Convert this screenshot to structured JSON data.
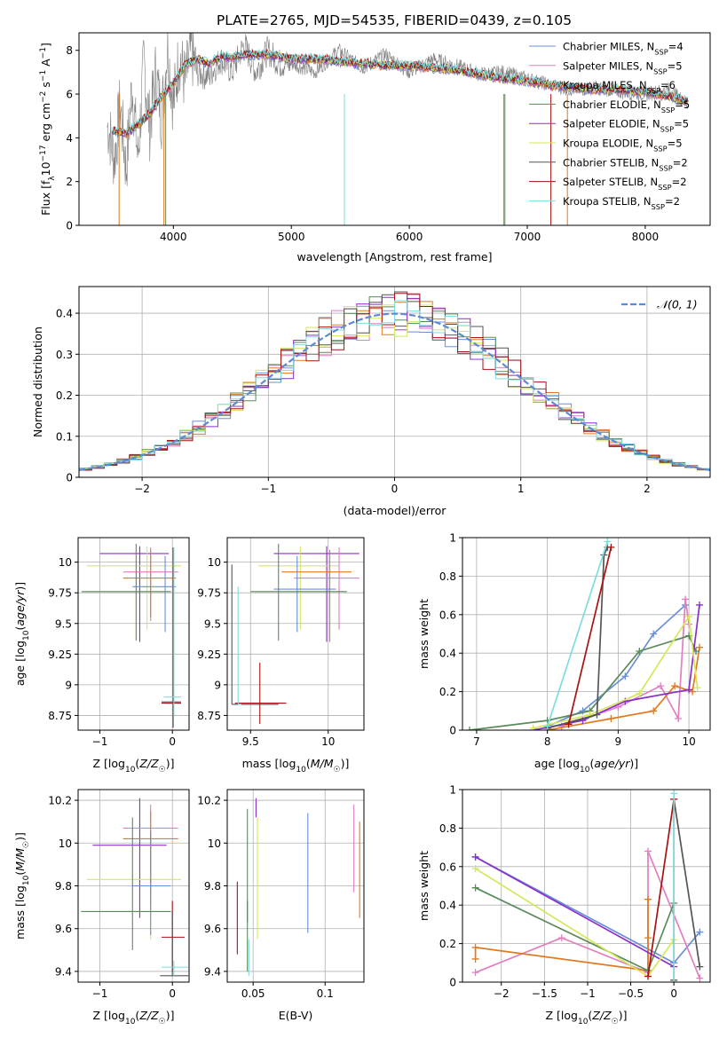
{
  "figure_title": "PLATE=2765, MJD=54535, FIBERID=0439, z=0.105",
  "colors": {
    "chabrier_miles": "#6a8fd8",
    "salpeter_miles": "#e17fbf",
    "kroupa_miles": "#e07a22",
    "chabrier_elodie": "#5a8a5a",
    "salpeter_elodie": "#8b2fc9",
    "kroupa_elodie": "#d4e85a",
    "chabrier_stelib": "#555555",
    "salpeter_stelib": "#aa1111",
    "kroupa_stelib": "#7fdcdc",
    "data_spectrum": "#7f7f7f",
    "normal_curve": "#5b8bd6",
    "grid": "#b0b0b0"
  },
  "chart_data": [
    {
      "id": "spectrum",
      "type": "line",
      "xlabel": "wavelength [Angstrom, rest frame]",
      "ylabel": "Flux [f_λ10^-17 erg cm^-2 s^-1 A^-1]",
      "xlim": [
        3200,
        8550
      ],
      "ylim": [
        0,
        8.8
      ],
      "xticks": [
        4000,
        5000,
        6000,
        7000,
        8000
      ],
      "yticks": [
        0,
        2,
        4,
        6,
        8
      ],
      "grid": false,
      "legend_position": "top-right",
      "legend": [
        {
          "label": "Chabrier MILES, N",
          "sub": "SSP",
          "tail": "=4",
          "color_key": "chabrier_miles"
        },
        {
          "label": "Salpeter MILES, N",
          "sub": "SSP",
          "tail": "=5",
          "color_key": "salpeter_miles"
        },
        {
          "label": "Kroupa MILES, N",
          "sub": "SSP",
          "tail": "=6",
          "color_key": "kroupa_miles"
        },
        {
          "label": "Chabrier ELODIE, N",
          "sub": "SSP",
          "tail": "=5",
          "color_key": "chabrier_elodie"
        },
        {
          "label": "Salpeter ELODIE, N",
          "sub": "SSP",
          "tail": "=5",
          "color_key": "salpeter_elodie"
        },
        {
          "label": "Kroupa ELODIE, N",
          "sub": "SSP",
          "tail": "=5",
          "color_key": "kroupa_elodie"
        },
        {
          "label": "Chabrier STELIB, N",
          "sub": "SSP",
          "tail": "=2",
          "color_key": "chabrier_stelib"
        },
        {
          "label": "Salpeter STELIB, N",
          "sub": "SSP",
          "tail": "=2",
          "color_key": "salpeter_stelib"
        },
        {
          "label": "Kroupa STELIB, N",
          "sub": "SSP",
          "tail": "=2",
          "color_key": "kroupa_stelib"
        }
      ],
      "model_x": [
        3500,
        3600,
        3700,
        3800,
        3900,
        4000,
        4100,
        4200,
        4300,
        4400,
        4500,
        4600,
        4700,
        4800,
        4900,
        5000,
        5200,
        5400,
        5600,
        5800,
        6000,
        6200,
        6400,
        6600,
        6800,
        7000,
        7200,
        7400,
        7600,
        7800,
        8000,
        8200,
        8350
      ],
      "model_y": [
        4.3,
        4.2,
        4.6,
        5.1,
        5.9,
        6.5,
        7.3,
        7.6,
        7.4,
        7.7,
        7.7,
        7.8,
        7.8,
        7.8,
        7.7,
        7.6,
        7.6,
        7.5,
        7.4,
        7.3,
        7.3,
        7.2,
        7.1,
        6.9,
        6.7,
        6.6,
        6.4,
        6.3,
        6.2,
        6.2,
        6.1,
        5.9,
        5.7
      ],
      "data_x": [
        3450,
        3500,
        3550,
        3600,
        3650,
        3700,
        3750,
        3800,
        3850,
        3900,
        3950,
        4000,
        4050,
        4100,
        4150,
        4200,
        4300,
        4400,
        4500,
        4600,
        4700,
        4800,
        4900,
        5000,
        5200,
        5400,
        5600,
        5800,
        6000,
        6200,
        6400,
        6600,
        6800,
        7000,
        7200,
        7400,
        7600,
        7800,
        8000,
        8200,
        8350
      ],
      "data_y": [
        4.5,
        3.0,
        5.5,
        2.5,
        6.5,
        3.0,
        7.5,
        4.5,
        7.0,
        5.0,
        8.2,
        5.5,
        7.8,
        6.5,
        8.0,
        7.0,
        6.8,
        7.6,
        7.0,
        8.3,
        7.0,
        8.0,
        7.4,
        7.4,
        7.0,
        8.0,
        7.2,
        7.8,
        7.0,
        7.6,
        7.3,
        6.9,
        7.0,
        6.7,
        6.4,
        6.2,
        6.3,
        6.1,
        6.0,
        6.2,
        5.6
      ]
    },
    {
      "id": "residuals",
      "type": "histogram",
      "xlabel": "(data-model)/error",
      "ylabel": "Normed distribution",
      "xlim": [
        -2.5,
        2.5
      ],
      "ylim": [
        0,
        0.465
      ],
      "xticks": [
        -2,
        -1,
        0,
        1,
        2
      ],
      "yticks": [
        0.0,
        0.1,
        0.2,
        0.3,
        0.4
      ],
      "grid": true,
      "legend_position": "top-right",
      "legend": [
        {
          "label": "𝒩(0, 1)",
          "color_key": "normal_curve"
        }
      ],
      "bin_width": 0.1
    },
    {
      "id": "age_vs_Z",
      "type": "errorbar",
      "xlabel": "Z [log10(Z/Z☉)]",
      "ylabel": "age  [log10(age/yr)]",
      "xlim": [
        -1.3,
        0.23
      ],
      "ylim": [
        8.63,
        10.2
      ],
      "xticks": [
        -1,
        0
      ],
      "yticks": [
        8.75,
        9.0,
        9.25,
        9.5,
        9.75,
        10.0
      ],
      "grid": true,
      "points": [
        {
          "c": "salpeter_elodie",
          "x": -0.45,
          "y": 10.07,
          "xlo": -1.0,
          "xhi": -0.05,
          "ylo": 9.35,
          "yhi": 10.13
        },
        {
          "c": "kroupa_elodie",
          "x": -0.35,
          "y": 9.97,
          "xlo": -1.18,
          "xhi": 0.12,
          "ylo": 9.45,
          "yhi": 10.13
        },
        {
          "c": "salpeter_miles",
          "x": -0.3,
          "y": 9.92,
          "xlo": -0.68,
          "xhi": 0.08,
          "ylo": 9.52,
          "yhi": 10.12
        },
        {
          "c": "kroupa_miles",
          "x": -0.3,
          "y": 9.87,
          "xlo": -0.68,
          "xhi": 0.05,
          "ylo": 9.55,
          "yhi": 10.1
        },
        {
          "c": "chabrier_miles",
          "x": -0.1,
          "y": 9.8,
          "xlo": -0.55,
          "xhi": 0.05,
          "ylo": 9.43,
          "yhi": 10.05
        },
        {
          "c": "chabrier_elodie",
          "x": -0.5,
          "y": 9.76,
          "xlo": -1.25,
          "xhi": -0.02,
          "ylo": 9.36,
          "yhi": 10.15
        },
        {
          "c": "salpeter_stelib",
          "x": 0.01,
          "y": 8.85,
          "xlo": -0.15,
          "xhi": 0.12,
          "ylo": 8.65,
          "yhi": 10.12
        },
        {
          "c": "chabrier_stelib",
          "x": 0.01,
          "y": 8.86,
          "xlo": -0.15,
          "xhi": 0.12,
          "ylo": 8.66,
          "yhi": 10.12
        },
        {
          "c": "kroupa_stelib",
          "x": 0.02,
          "y": 8.9,
          "xlo": -0.12,
          "xhi": 0.12,
          "ylo": 8.75,
          "yhi": 10.12
        }
      ]
    },
    {
      "id": "age_vs_mass",
      "type": "errorbar",
      "xlabel": "mass [log10(M/M☉)]",
      "ylabel": "",
      "xlim": [
        9.35,
        10.23
      ],
      "ylim": [
        8.63,
        10.2
      ],
      "xticks": [
        9.5,
        10.0
      ],
      "yticks": [
        8.75,
        9.0,
        9.25,
        9.5,
        9.75,
        10.0
      ],
      "grid": true,
      "points": [
        {
          "c": "salpeter_elodie",
          "x": 9.99,
          "y": 10.07,
          "xlo": 9.65,
          "xhi": 10.2,
          "ylo": 9.35,
          "yhi": 10.13
        },
        {
          "c": "kroupa_elodie",
          "x": 9.82,
          "y": 9.97,
          "xlo": 9.55,
          "xhi": 10.07,
          "ylo": 9.45,
          "yhi": 10.13
        },
        {
          "c": "salpeter_miles",
          "x": 10.07,
          "y": 9.87,
          "xlo": 9.78,
          "xhi": 10.2,
          "ylo": 9.45,
          "yhi": 10.12
        },
        {
          "c": "kroupa_miles",
          "x": 10.01,
          "y": 9.92,
          "xlo": 9.7,
          "xhi": 10.15,
          "ylo": 9.35,
          "yhi": 10.1
        },
        {
          "c": "chabrier_miles",
          "x": 9.8,
          "y": 9.78,
          "xlo": 9.65,
          "xhi": 10.05,
          "ylo": 9.43,
          "yhi": 10.05
        },
        {
          "c": "chabrier_elodie",
          "x": 9.68,
          "y": 9.76,
          "xlo": 9.5,
          "xhi": 10.12,
          "ylo": 9.36,
          "yhi": 10.15
        },
        {
          "c": "salpeter_stelib",
          "x": 9.56,
          "y": 8.85,
          "xlo": 9.4,
          "xhi": 9.73,
          "ylo": 8.68,
          "yhi": 9.18
        },
        {
          "c": "chabrier_stelib",
          "x": 9.38,
          "y": 8.84,
          "xlo": 9.38,
          "xhi": 9.68,
          "ylo": 8.84,
          "yhi": 9.98
        },
        {
          "c": "kroupa_stelib",
          "x": 9.42,
          "y": 8.84,
          "xlo": 9.42,
          "xhi": 9.44,
          "ylo": 8.84,
          "yhi": 9.8
        }
      ]
    },
    {
      "id": "massweight_vs_age",
      "type": "line",
      "xlabel": "age  [log10(age/yr)]",
      "ylabel": "mass weight",
      "xlim": [
        6.8,
        10.3
      ],
      "ylim": [
        0,
        1.0
      ],
      "xticks": [
        7,
        8,
        9,
        10
      ],
      "yticks": [
        0.0,
        0.2,
        0.4,
        0.6,
        0.8,
        1.0
      ],
      "grid": true,
      "series": [
        {
          "c": "chabrier_miles",
          "x": [
            8.0,
            8.5,
            9.1,
            9.5,
            9.95
          ],
          "y": [
            0.02,
            0.1,
            0.28,
            0.5,
            0.65
          ]
        },
        {
          "c": "salpeter_miles",
          "x": [
            8.2,
            9.0,
            9.6,
            9.85,
            9.95,
            10.0
          ],
          "y": [
            0.02,
            0.12,
            0.23,
            0.06,
            0.68,
            0.55
          ]
        },
        {
          "c": "kroupa_miles",
          "x": [
            8.0,
            8.9,
            9.5,
            9.8,
            10.05,
            10.15
          ],
          "y": [
            0.0,
            0.06,
            0.1,
            0.23,
            0.2,
            0.43
          ]
        },
        {
          "c": "chabrier_elodie",
          "x": [
            6.9,
            8.0,
            8.6,
            9.3,
            10.0,
            10.1
          ],
          "y": [
            0.0,
            0.05,
            0.1,
            0.41,
            0.49,
            0.41
          ]
        },
        {
          "c": "salpeter_elodie",
          "x": [
            7.8,
            8.5,
            9.1,
            10.0,
            10.15
          ],
          "y": [
            0.0,
            0.05,
            0.15,
            0.21,
            0.65
          ]
        },
        {
          "c": "kroupa_elodie",
          "x": [
            7.8,
            8.6,
            9.3,
            10.0,
            10.12
          ],
          "y": [
            0.01,
            0.08,
            0.19,
            0.59,
            0.22
          ]
        },
        {
          "c": "chabrier_stelib",
          "x": [
            8.0,
            8.7,
            8.8,
            8.85
          ],
          "y": [
            0.01,
            0.08,
            0.91,
            0.95
          ]
        },
        {
          "c": "salpeter_stelib",
          "x": [
            8.3,
            8.9
          ],
          "y": [
            0.03,
            0.95
          ]
        },
        {
          "c": "kroupa_stelib",
          "x": [
            8.0,
            8.85
          ],
          "y": [
            0.02,
            0.98
          ]
        }
      ]
    },
    {
      "id": "mass_vs_Z",
      "type": "errorbar",
      "xlabel": "Z [log10(Z/Z☉)]",
      "ylabel": "mass [log10(M/M☉)]",
      "xlim": [
        -1.3,
        0.23
      ],
      "ylim": [
        9.35,
        10.25
      ],
      "xticks": [
        -1,
        0
      ],
      "yticks": [
        9.4,
        9.6,
        9.8,
        10.0,
        10.2
      ],
      "grid": true,
      "points": [
        {
          "c": "salpeter_elodie",
          "x": -0.45,
          "y": 9.99,
          "xlo": -1.1,
          "xhi": -0.08,
          "ylo": 9.65,
          "yhi": 10.21
        },
        {
          "c": "kroupa_elodie",
          "x": -0.3,
          "y": 9.83,
          "xlo": -1.18,
          "xhi": 0.12,
          "ylo": 9.55,
          "yhi": 10.05
        },
        {
          "c": "salpeter_miles",
          "x": -0.3,
          "y": 10.07,
          "xlo": -0.68,
          "xhi": 0.08,
          "ylo": 9.78,
          "yhi": 10.18
        },
        {
          "c": "kroupa_miles",
          "x": -0.3,
          "y": 10.02,
          "xlo": -0.68,
          "xhi": 0.08,
          "ylo": 9.7,
          "yhi": 10.15
        },
        {
          "c": "chabrier_miles",
          "x": -0.3,
          "y": 9.8,
          "xlo": -0.55,
          "xhi": -0.02,
          "ylo": 9.57,
          "yhi": 10.05
        },
        {
          "c": "chabrier_elodie",
          "x": -0.55,
          "y": 9.68,
          "xlo": -1.26,
          "xhi": -0.02,
          "ylo": 9.5,
          "yhi": 10.12
        },
        {
          "c": "salpeter_stelib",
          "x": 0.0,
          "y": 9.56,
          "xlo": -0.15,
          "xhi": 0.17,
          "ylo": 9.4,
          "yhi": 9.73
        },
        {
          "c": "chabrier_stelib",
          "x": 0.0,
          "y": 9.38,
          "xlo": -0.17,
          "xhi": 0.22,
          "ylo": 9.38,
          "yhi": 9.68
        },
        {
          "c": "kroupa_stelib",
          "x": 0.02,
          "y": 9.42,
          "xlo": -0.15,
          "xhi": 0.22,
          "ylo": 9.38,
          "yhi": 9.45
        }
      ]
    },
    {
      "id": "mass_vs_ebv",
      "type": "errorbar",
      "xlabel": "E(B-V)",
      "ylabel": "",
      "xlim": [
        0.032,
        0.127
      ],
      "ylim": [
        9.35,
        10.25
      ],
      "xticks": [
        0.05,
        0.1
      ],
      "yticks": [
        9.4,
        9.6,
        9.8,
        10.0,
        10.2
      ],
      "grid": true,
      "points": [
        {
          "c": "salpeter_stelib",
          "x": 0.039,
          "ylo": 9.48,
          "yhi": 9.82
        },
        {
          "c": "chabrier_stelib",
          "x": 0.046,
          "ylo": 9.63,
          "yhi": 9.73
        },
        {
          "c": "chabrier_elodie",
          "x": 0.046,
          "ylo": 9.4,
          "yhi": 10.16
        },
        {
          "c": "kroupa_stelib",
          "x": 0.047,
          "ylo": 9.38,
          "yhi": 9.55
        },
        {
          "c": "salpeter_elodie",
          "x": 0.052,
          "ylo": 10.12,
          "yhi": 10.21
        },
        {
          "c": "kroupa_elodie",
          "x": 0.053,
          "ylo": 9.55,
          "yhi": 10.12
        },
        {
          "c": "chabrier_miles",
          "x": 0.088,
          "ylo": 9.58,
          "yhi": 10.14
        },
        {
          "c": "salpeter_miles",
          "x": 0.12,
          "ylo": 9.77,
          "yhi": 10.18
        },
        {
          "c": "kroupa_miles",
          "x": 0.124,
          "ylo": 9.65,
          "yhi": 10.1
        }
      ]
    },
    {
      "id": "massweight_vs_Z",
      "type": "line",
      "xlabel": "Z [log10(Z/Z☉)]",
      "ylabel": "mass weight",
      "xlim": [
        -2.45,
        0.42
      ],
      "ylim": [
        0,
        1.0
      ],
      "xticks": [
        -2.0,
        -1.5,
        -1.0,
        -0.5,
        0.0
      ],
      "yticks": [
        0.0,
        0.2,
        0.4,
        0.6,
        0.8,
        1.0
      ],
      "grid": true,
      "series": [
        {
          "c": "chabrier_miles",
          "x": [
            -2.3,
            0.0,
            0.3
          ],
          "y": [
            0.65,
            0.1,
            0.26
          ]
        },
        {
          "c": "salpeter_miles",
          "x": [
            -2.3,
            -1.3,
            -0.3,
            -0.3,
            0.3
          ],
          "y": [
            0.05,
            0.23,
            0.05,
            0.68,
            0.02
          ]
        },
        {
          "c": "kroupa_miles",
          "x": [
            -2.3,
            -2.3,
            -0.3,
            -0.3,
            -0.3
          ],
          "y": [
            0.12,
            0.18,
            0.06,
            0.23,
            0.43
          ]
        },
        {
          "c": "chabrier_elodie",
          "x": [
            -2.3,
            -0.3,
            0.0
          ],
          "y": [
            0.49,
            0.06,
            0.41
          ]
        },
        {
          "c": "salpeter_elodie",
          "x": [
            -2.3,
            0.0
          ],
          "y": [
            0.65,
            0.08
          ]
        },
        {
          "c": "kroupa_elodie",
          "x": [
            -2.3,
            -0.3,
            0.0
          ],
          "y": [
            0.59,
            0.03,
            0.22
          ]
        },
        {
          "c": "chabrier_stelib",
          "x": [
            0.0,
            0.0,
            0.3
          ],
          "y": [
            0.01,
            0.95,
            0.08
          ]
        },
        {
          "c": "salpeter_stelib",
          "x": [
            -0.3,
            0.0
          ],
          "y": [
            0.03,
            0.95
          ]
        },
        {
          "c": "kroupa_stelib",
          "x": [
            0.0,
            0.0
          ],
          "y": [
            0.0,
            0.98
          ]
        }
      ]
    }
  ]
}
